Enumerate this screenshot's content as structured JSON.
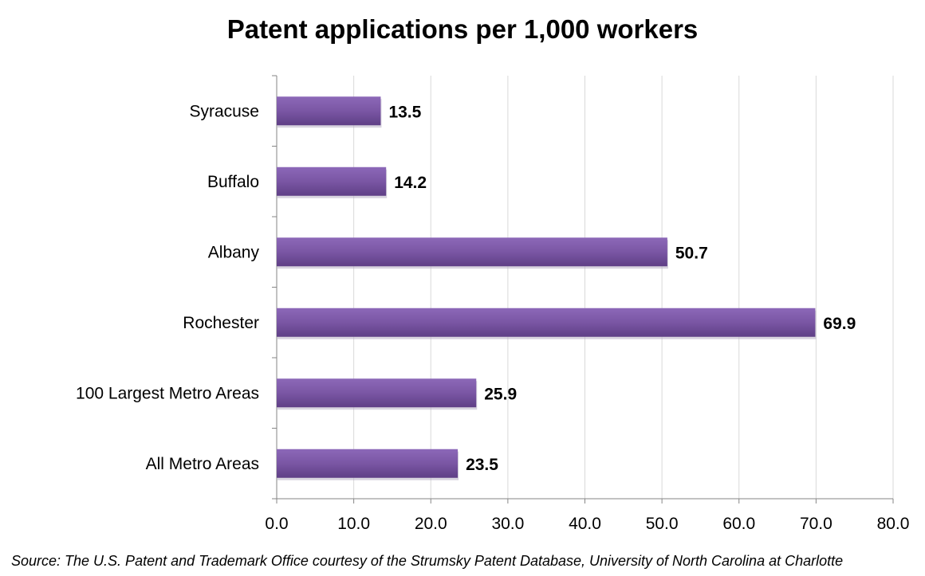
{
  "chart_data": {
    "type": "bar",
    "orientation": "horizontal",
    "title": "Patent applications per 1,000 workers",
    "categories": [
      "Syracuse",
      "Buffalo",
      "Albany",
      "Rochester",
      "100 Largest Metro Areas",
      "All Metro Areas"
    ],
    "values": [
      13.5,
      14.2,
      50.7,
      69.9,
      25.9,
      23.5
    ],
    "data_labels": [
      "13.5",
      "14.2",
      "50.7",
      "69.9",
      "25.9",
      "23.5"
    ],
    "xlim": [
      0,
      80
    ],
    "x_ticks": [
      "0.0",
      "10.0",
      "20.0",
      "30.0",
      "40.0",
      "50.0",
      "60.0",
      "70.0",
      "80.0"
    ],
    "grid": "vertical",
    "legend": "none",
    "bar_color": "#7a56a4"
  },
  "source": "Source: The U.S. Patent and Trademark Office courtesy of the Strumsky Patent Database, University of North Carolina at Charlotte"
}
